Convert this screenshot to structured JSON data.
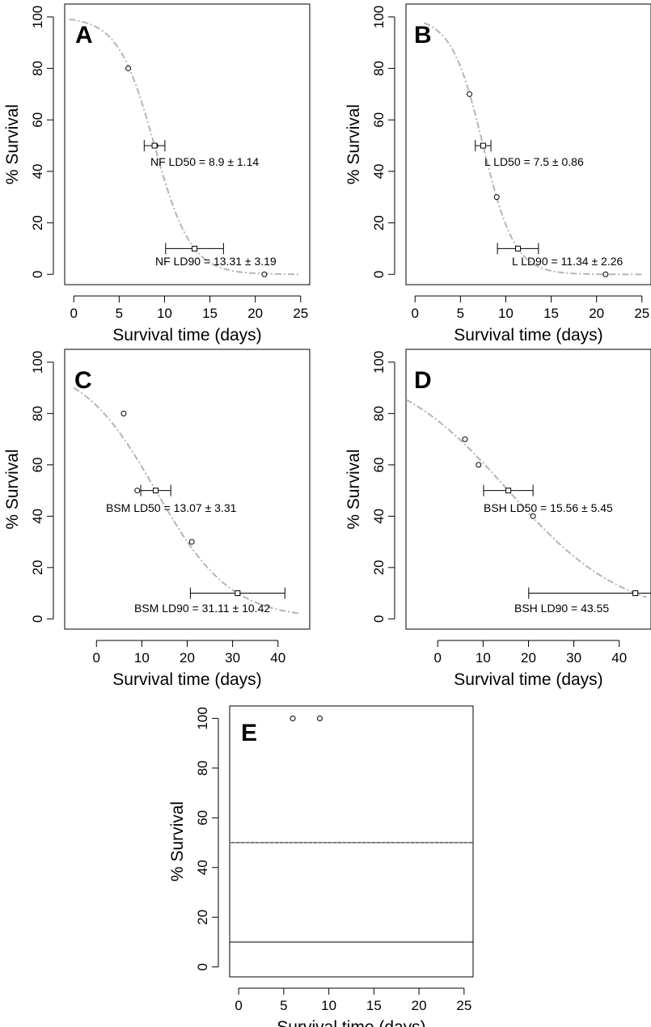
{
  "chart_data": [
    {
      "type": "scatter",
      "panel": "A",
      "xlabel": "Survival time (days)",
      "ylabel": "% Survival",
      "xlim": [
        -1,
        26
      ],
      "ylim": [
        -4,
        105
      ],
      "xticks": [
        0,
        5,
        10,
        15,
        20,
        25
      ],
      "yticks": [
        0,
        20,
        40,
        60,
        80,
        100
      ],
      "grid": false,
      "points": [
        {
          "x": 6,
          "y": 80
        },
        {
          "x": 9,
          "y": 50
        },
        {
          "x": 21,
          "y": 0
        }
      ],
      "fit": {
        "style": "dash-dot",
        "color": "#b5b5b5",
        "ld50": 8.9,
        "ld90": 13.31,
        "start": -0.5,
        "end": 25
      },
      "ld": [
        {
          "name": "LD50",
          "x": 8.9,
          "y": 50,
          "err": 1.14,
          "label": "NF LD50 =  8.9  ±  1.14"
        },
        {
          "name": "LD90",
          "x": 13.31,
          "y": 10,
          "err": 3.19,
          "label": "NF LD90 =  13.31  ±  3.19"
        }
      ]
    },
    {
      "type": "scatter",
      "panel": "B",
      "xlabel": "Survival time (days)",
      "ylabel": "% Survival",
      "xlim": [
        -1,
        26
      ],
      "ylim": [
        -4,
        105
      ],
      "xticks": [
        0,
        5,
        10,
        15,
        20,
        25
      ],
      "yticks": [
        0,
        20,
        40,
        60,
        80,
        100
      ],
      "grid": false,
      "points": [
        {
          "x": 6,
          "y": 70
        },
        {
          "x": 9,
          "y": 30
        },
        {
          "x": 21,
          "y": 0
        }
      ],
      "fit": {
        "style": "dash-dot",
        "color": "#b5b5b5",
        "ld50": 7.5,
        "ld90": 11.34,
        "start": 1,
        "end": 25
      },
      "ld": [
        {
          "name": "LD50",
          "x": 7.5,
          "y": 50,
          "err": 0.86,
          "label": "L LD50 =  7.5  ±  0.86"
        },
        {
          "name": "LD90",
          "x": 11.34,
          "y": 10,
          "err": 2.26,
          "label": "L LD90 =  11.34  ±  2.26"
        }
      ]
    },
    {
      "type": "scatter",
      "panel": "C",
      "xlabel": "Survival time (days)",
      "ylabel": "% Survival",
      "xlim": [
        -7,
        47
      ],
      "ylim": [
        -4,
        105
      ],
      "xticks": [
        0,
        10,
        20,
        30,
        40
      ],
      "yticks": [
        0,
        20,
        40,
        60,
        80,
        100
      ],
      "grid": false,
      "points": [
        {
          "x": 6,
          "y": 80
        },
        {
          "x": 9,
          "y": 50
        },
        {
          "x": 21,
          "y": 30
        }
      ],
      "fit": {
        "style": "dash-dot",
        "color": "#b5b5b5",
        "ld50": 13.07,
        "ld90": 31.11,
        "start": -5,
        "end": 45
      },
      "ld": [
        {
          "name": "LD50",
          "x": 13.07,
          "y": 50,
          "err": 3.31,
          "label": "BSM LD50 =  13.07  ±  3.31"
        },
        {
          "name": "LD90",
          "x": 31.11,
          "y": 10,
          "err": 10.42,
          "label": "BSM LD90 =  31.11  ±  10.42"
        }
      ]
    },
    {
      "type": "scatter",
      "panel": "D",
      "xlabel": "Survival time (days)",
      "ylabel": "% Survival",
      "xlim": [
        -7,
        47
      ],
      "ylim": [
        -4,
        105
      ],
      "xticks": [
        0,
        10,
        20,
        30,
        40
      ],
      "yticks": [
        0,
        20,
        40,
        60,
        80,
        100
      ],
      "grid": false,
      "points": [
        {
          "x": 6,
          "y": 70
        },
        {
          "x": 9,
          "y": 60
        },
        {
          "x": 21,
          "y": 40
        }
      ],
      "fit": {
        "style": "dash-dot",
        "color": "#b5b5b5",
        "ld50": 15.56,
        "ld90": 43.55,
        "start": -7,
        "end": 46
      },
      "ld": [
        {
          "name": "LD50",
          "x": 15.56,
          "y": 50,
          "err": 5.45,
          "label": "BSH LD50 =  15.56  ±  5.45"
        },
        {
          "name": "LD90",
          "x": 43.55,
          "y": 10,
          "err": 23.5,
          "label": "BSH LD90 =  43.55"
        }
      ]
    },
    {
      "type": "scatter",
      "panel": "E",
      "xlabel": "Survival time (days)",
      "ylabel": "% Survival",
      "xlim": [
        -1,
        26
      ],
      "ylim": [
        -4,
        105
      ],
      "xticks": [
        0,
        5,
        10,
        15,
        20,
        25
      ],
      "yticks": [
        0,
        20,
        40,
        60,
        80,
        100
      ],
      "grid": false,
      "points": [
        {
          "x": 6,
          "y": 100
        },
        {
          "x": 9,
          "y": 100
        }
      ],
      "hlines": [
        {
          "y": 50,
          "style": "solid"
        },
        {
          "y": 50,
          "style": "dotted"
        },
        {
          "y": 10,
          "style": "solid"
        }
      ]
    }
  ]
}
